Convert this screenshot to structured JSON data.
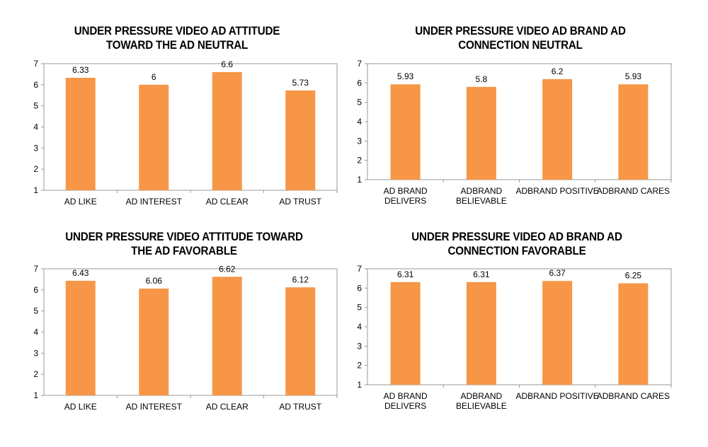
{
  "chart_data": [
    {
      "type": "bar",
      "title": "UNDER PRESSURE VIDEO AD ATTITUDE TOWARD THE AD NEUTRAL",
      "categories": [
        "AD LIKE",
        "AD INTEREST",
        "AD CLEAR",
        "AD TRUST"
      ],
      "values": [
        6.33,
        6,
        6.6,
        5.73
      ],
      "value_labels": [
        "6.33",
        "6",
        "6.6",
        "5.73"
      ],
      "xlabel": "",
      "ylabel": "",
      "ylim": [
        1,
        7
      ],
      "yticks": [
        "1",
        "2",
        "3",
        "4",
        "5",
        "6",
        "7"
      ],
      "grid": false,
      "legend": "none",
      "bar_color": "#F79646"
    },
    {
      "type": "bar",
      "title": "UNDER PRESSURE VIDEO AD BRAND AD CONNECTION NEUTRAL",
      "categories": [
        "AD BRAND DELIVERS",
        "ADBRAND BELIEVABLE",
        "ADBRAND POSITIVE",
        "ADBRAND CARES"
      ],
      "values": [
        5.93,
        5.8,
        6.2,
        5.93
      ],
      "value_labels": [
        "5.93",
        "5.8",
        "6.2",
        "5.93"
      ],
      "xlabel": "",
      "ylabel": "",
      "ylim": [
        1,
        7
      ],
      "yticks": [
        "1",
        "2",
        "3",
        "4",
        "5",
        "6",
        "7"
      ],
      "grid": false,
      "legend": "none",
      "bar_color": "#F79646"
    },
    {
      "type": "bar",
      "title": "UNDER PRESSURE VIDEO ATTITUDE TOWARD THE AD FAVORABLE",
      "categories": [
        "AD LIKE",
        "AD INTEREST",
        "AD CLEAR",
        "AD TRUST"
      ],
      "values": [
        6.43,
        6.06,
        6.62,
        6.12
      ],
      "value_labels": [
        "6.43",
        "6.06",
        "6.62",
        "6.12"
      ],
      "xlabel": "",
      "ylabel": "",
      "ylim": [
        1,
        7
      ],
      "yticks": [
        "1",
        "2",
        "3",
        "4",
        "5",
        "6",
        "7"
      ],
      "grid": false,
      "legend": "none",
      "bar_color": "#F79646"
    },
    {
      "type": "bar",
      "title": "UNDER PRESSURE VIDEO AD BRAND AD CONNECTION FAVORABLE",
      "categories": [
        "AD BRAND DELIVERS",
        "ADBRAND BELIEVABLE",
        "ADBRAND POSITIVE",
        "ADBRAND CARES"
      ],
      "values": [
        6.31,
        6.31,
        6.37,
        6.25
      ],
      "value_labels": [
        "6.31",
        "6.31",
        "6.37",
        "6.25"
      ],
      "xlabel": "",
      "ylabel": "",
      "ylim": [
        1,
        7
      ],
      "yticks": [
        "1",
        "2",
        "3",
        "4",
        "5",
        "6",
        "7"
      ],
      "grid": false,
      "legend": "none",
      "bar_color": "#F79646"
    }
  ]
}
